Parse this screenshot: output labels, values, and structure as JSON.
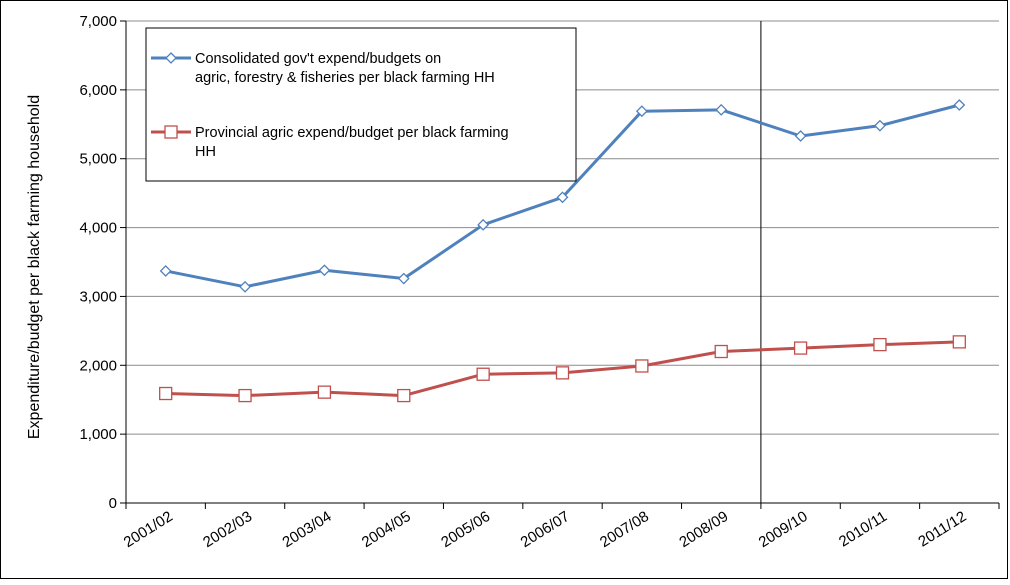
{
  "chart_data": {
    "type": "line",
    "categories": [
      "2001/02",
      "2002/03",
      "2003/04",
      "2004/05",
      "2005/06",
      "2006/07",
      "2007/08",
      "2008/09",
      "2009/10",
      "2010/11",
      "2011/12"
    ],
    "series": [
      {
        "name": "Consolidated gov't expend/budgets on agric, forestry & fisheries per black farming HH",
        "name_lines": [
          "Consolidated gov't expend/budgets on",
          "agric, forestry & fisheries per black farming HH"
        ],
        "color": "#4f81bd",
        "marker": "diamond",
        "values": [
          3370,
          3140,
          3380,
          3260,
          4040,
          4440,
          5690,
          5710,
          5330,
          5480,
          5780
        ]
      },
      {
        "name": "Provincial agric expend/budget per black farming HH",
        "name_lines": [
          "Provincial agric expend/budget per black farming",
          "HH"
        ],
        "color": "#c0504d",
        "marker": "square",
        "values": [
          1590,
          1560,
          1610,
          1560,
          1870,
          1890,
          1990,
          2200,
          2250,
          2300,
          2340
        ]
      }
    ],
    "ylabel": "Expenditure/budget  per black farming household",
    "ylim": [
      0,
      7000
    ],
    "yticks": [
      0,
      1000,
      2000,
      3000,
      4000,
      5000,
      6000,
      7000
    ],
    "ytick_labels": [
      "0",
      "1,000",
      "2,000",
      "3,000",
      "4,000",
      "5,000",
      "6,000",
      "7,000"
    ],
    "grid": true,
    "legend_position": "top-left",
    "vertical_marker_between": [
      "2008/09",
      "2009/10"
    ]
  }
}
